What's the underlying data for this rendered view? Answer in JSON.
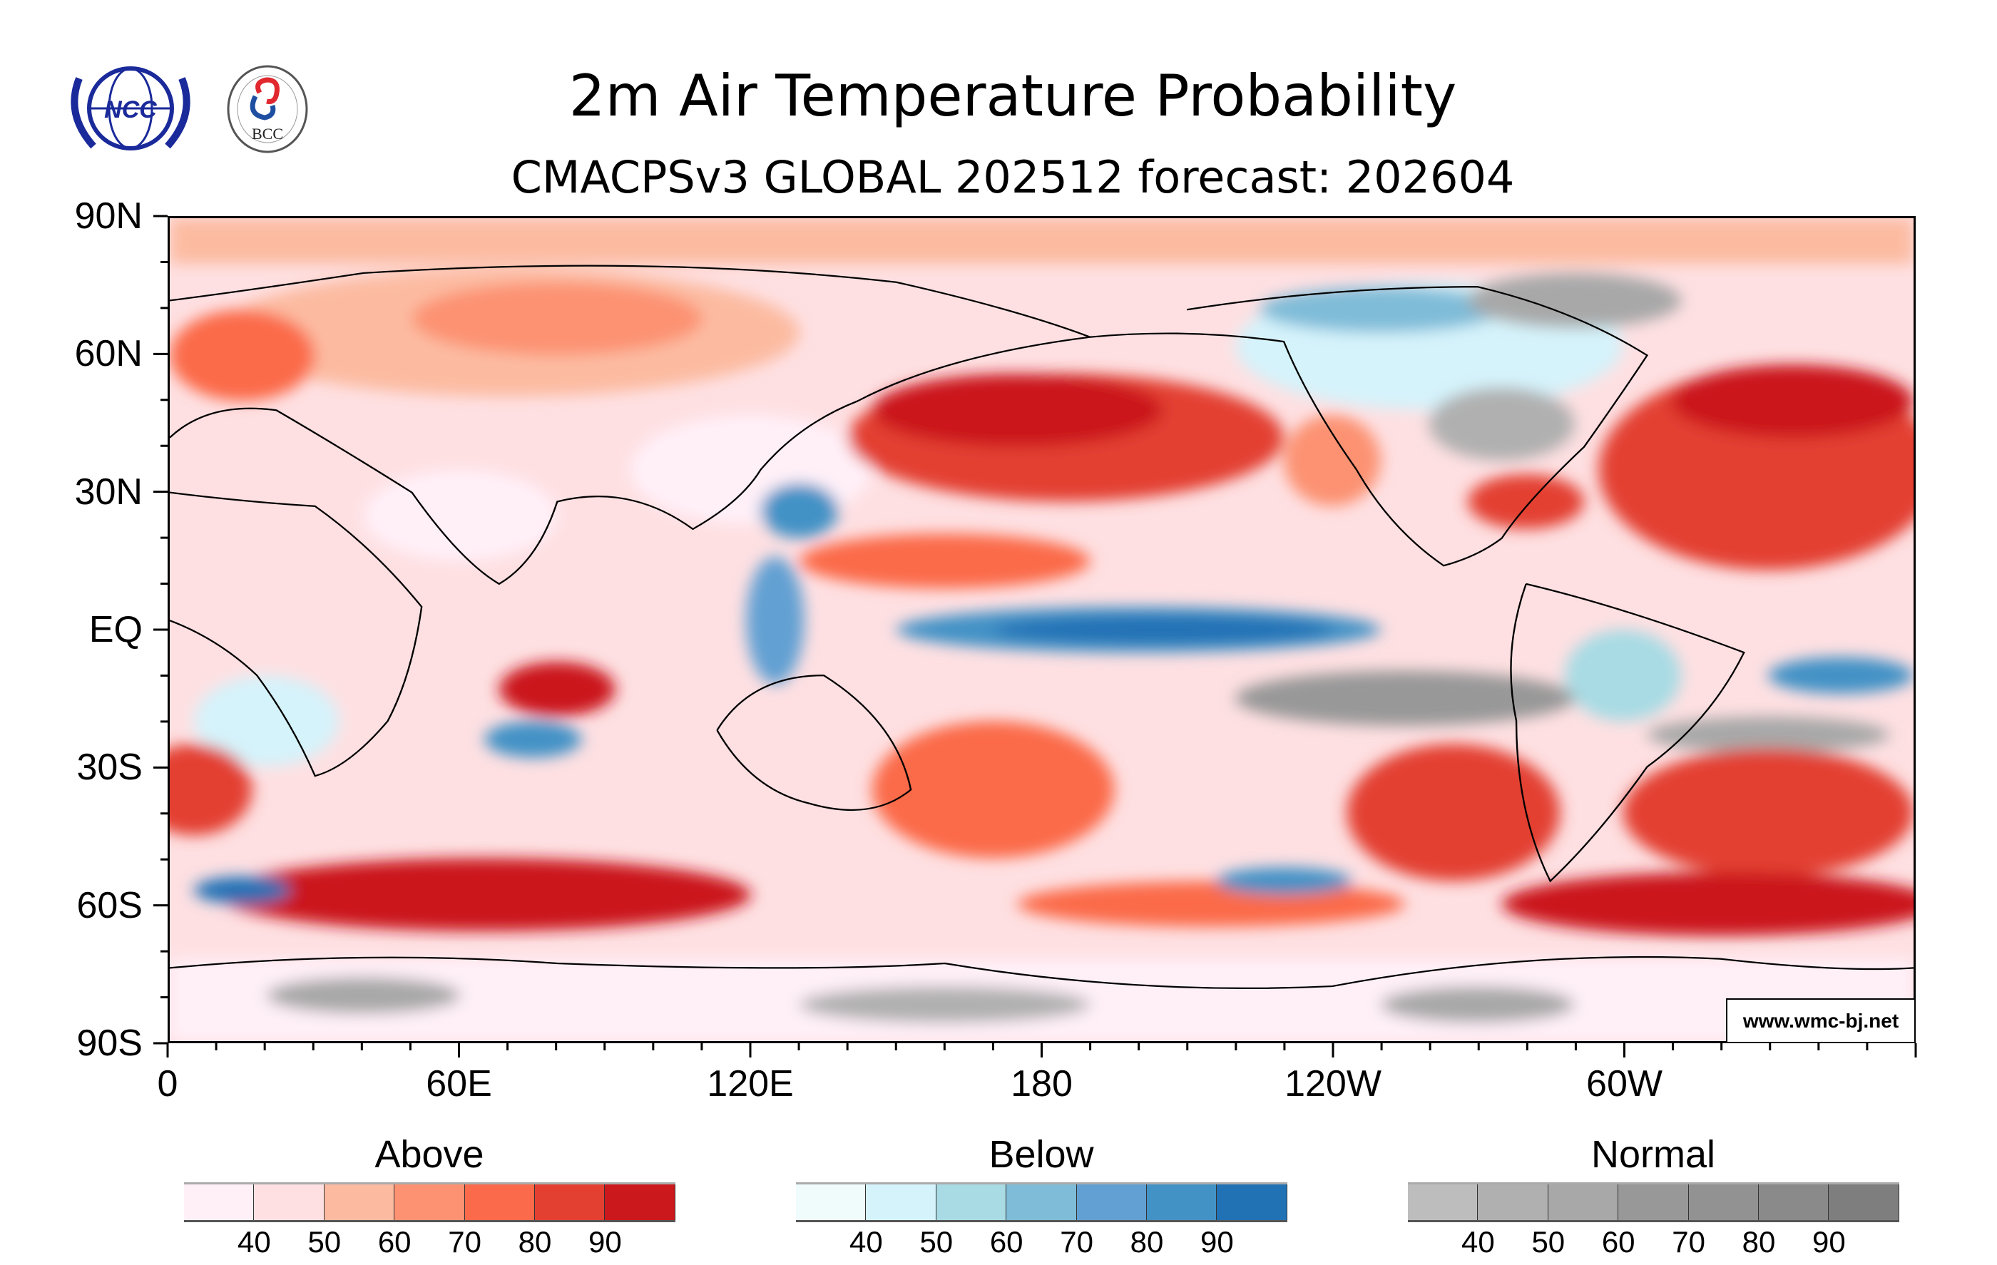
{
  "header": {
    "title": "2m Air Temperature Probability",
    "subtitle": "CMACPSv3 GLOBAL 202512 forecast: 202604",
    "logos": [
      {
        "name": "NCC",
        "text": "NCC"
      },
      {
        "name": "BCC",
        "text": "BCC"
      }
    ]
  },
  "map": {
    "projection": "equirectangular",
    "lat_labels": [
      "90N",
      "60N",
      "30N",
      "EQ",
      "30S",
      "60S",
      "90S"
    ],
    "lon_labels": [
      "0",
      "60E",
      "120E",
      "180",
      "120W",
      "60W"
    ],
    "watermark": "www.wmc-bj.net"
  },
  "legends": [
    {
      "title": "Above",
      "ticks": [
        "40",
        "50",
        "60",
        "70",
        "80",
        "90"
      ],
      "colors": [
        "#fff0f8",
        "#fee0e2",
        "#fcbba1",
        "#fc9272",
        "#fb6a4a",
        "#e34032",
        "#cb181d"
      ]
    },
    {
      "title": "Below",
      "ticks": [
        "40",
        "50",
        "60",
        "70",
        "80",
        "90"
      ],
      "colors": [
        "#f0fbfc",
        "#d5f3fb",
        "#a8dbe4",
        "#7fbcd8",
        "#62a0d3",
        "#4292c6",
        "#2171b5"
      ]
    },
    {
      "title": "Normal",
      "ticks": [
        "40",
        "50",
        "60",
        "70",
        "80",
        "90"
      ],
      "colors": [
        "#bdbdbd",
        "#b0b0b0",
        "#a8a8a8",
        "#989898",
        "#929292",
        "#8a8a8a",
        "#7e7e7e"
      ]
    }
  ]
}
